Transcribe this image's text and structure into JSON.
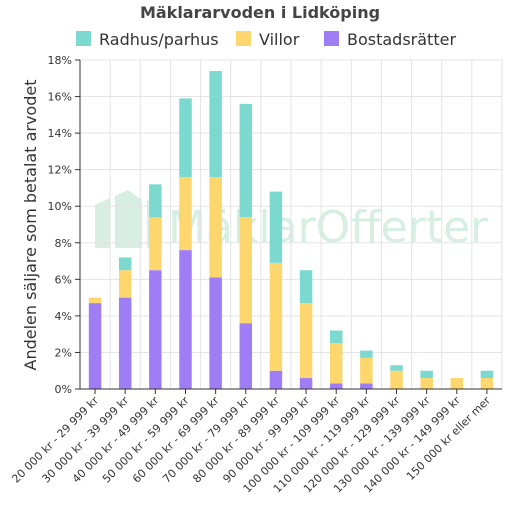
{
  "chart_data": {
    "type": "bar",
    "stacked": true,
    "title": "Mäklararvoden i Lidköping",
    "ylabel": "Andelen säljare som betalat arvodet",
    "xlabel": "",
    "ylim": [
      0,
      18
    ],
    "yticks": [
      "0%",
      "2%",
      "4%",
      "6%",
      "8%",
      "10%",
      "12%",
      "14%",
      "16%",
      "18%"
    ],
    "grid": true,
    "legend_position": "top",
    "categories": [
      "20 000 kr - 29 999 kr",
      "30 000 kr - 39 999 kr",
      "40 000 kr - 49 999 kr",
      "50 000 kr - 59 999 kr",
      "60 000 kr - 69 999 kr",
      "70 000 kr - 79 999 kr",
      "80 000 kr - 89 999 kr",
      "90 000 kr - 99 999 kr",
      "100 000 kr - 109 999 kr",
      "110 000 kr - 119 999 kr",
      "120 000 kr - 129 999 kr",
      "130 000 kr - 139 999 kr",
      "140 000 kr - 149 999 kr",
      "150 000 kr eller mer"
    ],
    "series": [
      {
        "name": "Bostadsrätter",
        "color": "#9f7ef5",
        "values": [
          4.7,
          5.0,
          6.5,
          7.6,
          6.1,
          3.6,
          1.0,
          0.6,
          0.3,
          0.3,
          0.0,
          0.0,
          0.0,
          0.0
        ]
      },
      {
        "name": "Villor",
        "color": "#fed66e",
        "values": [
          0.3,
          1.5,
          2.9,
          4.0,
          5.5,
          5.8,
          5.9,
          4.1,
          2.2,
          1.4,
          1.0,
          0.6,
          0.6,
          0.6
        ]
      },
      {
        "name": "Radhus/parhus",
        "color": "#7cd9d0",
        "values": [
          0.0,
          0.7,
          1.8,
          4.3,
          5.8,
          6.2,
          3.9,
          1.8,
          0.7,
          0.4,
          0.3,
          0.4,
          0.0,
          0.4
        ]
      }
    ],
    "legend_order": [
      "Radhus/parhus",
      "Villor",
      "Bostadsrätter"
    ],
    "watermark": "MäklarOfferter"
  }
}
